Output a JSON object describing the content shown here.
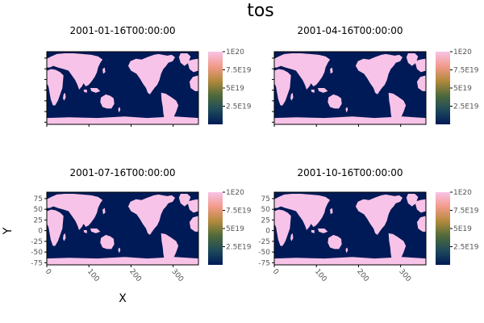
{
  "figure": {
    "title": "tos",
    "xlabel": "X",
    "ylabel": "Y",
    "colors": {
      "ocean": "#001a57",
      "land": "#f8c3e8",
      "frame": "#000000",
      "grid": "#d8d8d8"
    }
  },
  "chart_data": {
    "type": "heatmap",
    "variable": "tos",
    "panels": [
      {
        "title": "2001-01-16T00:00:00",
        "show_axes": false
      },
      {
        "title": "2001-04-16T00:00:00",
        "show_axes": false
      },
      {
        "title": "2001-07-16T00:00:00",
        "show_axes": true
      },
      {
        "title": "2001-10-16T00:00:00",
        "show_axes": true
      }
    ],
    "x_ticks": [
      "0",
      "100",
      "200",
      "300"
    ],
    "x_tick_values": [
      0,
      100,
      200,
      300
    ],
    "x_range": [
      0,
      360
    ],
    "y_ticks": [
      "75",
      "50",
      "25",
      "0",
      "-25",
      "-50",
      "-75"
    ],
    "y_tick_values": [
      75,
      50,
      25,
      0,
      -25,
      -50,
      -75
    ],
    "y_range": [
      -80,
      90
    ],
    "colorbar": {
      "range": [
        0,
        1e+20
      ],
      "ticks": [
        "1E20",
        "7.5E19",
        "5E19",
        "2.5E19"
      ],
      "tick_values": [
        1e+20,
        7.5e+19,
        5e+19,
        2.5e+19
      ],
      "colormap": [
        "#001a57",
        "#1f4a5a",
        "#4f6a3a",
        "#b38a3c",
        "#f39a8a",
        "#f8c3e8"
      ]
    }
  }
}
